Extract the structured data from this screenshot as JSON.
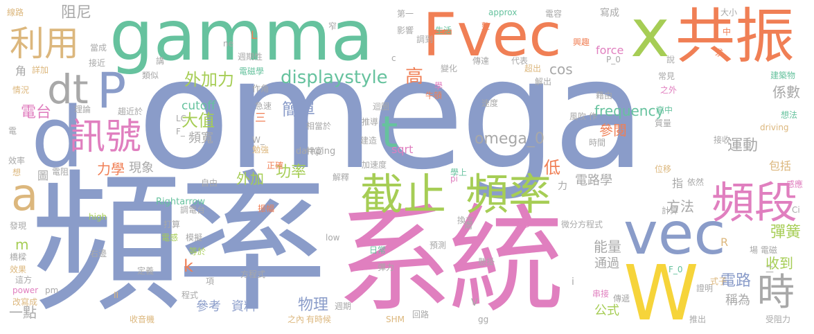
{
  "palette": {
    "blue": "#8a9cc9",
    "pink": "#e07fbf",
    "green": "#a6cd55",
    "teal": "#66c29e",
    "orange": "#f07f55",
    "yellow": "#f6d43a",
    "tan": "#dcb77d",
    "grey": "#a8a8a8"
  },
  "words": [
    {
      "text": "omega",
      "color": "blue"
    },
    {
      "text": "頻率",
      "color": "blue"
    },
    {
      "text": "系統",
      "color": "pink"
    },
    {
      "text": "gamma",
      "color": "teal"
    },
    {
      "text": "Fvec",
      "color": "orange"
    },
    {
      "text": "x",
      "color": "green"
    },
    {
      "text": "共振",
      "color": "orange"
    },
    {
      "text": "vec",
      "color": "blue"
    },
    {
      "text": "W",
      "color": "yellow"
    },
    {
      "text": "截止",
      "color": "green"
    },
    {
      "text": "頻率",
      "color": "green"
    },
    {
      "text": "頻段",
      "color": "pink"
    },
    {
      "text": "d",
      "color": "blue"
    },
    {
      "text": "dt",
      "color": "grey"
    },
    {
      "text": "P",
      "color": "blue"
    },
    {
      "text": "利用",
      "color": "tan"
    },
    {
      "text": "訊號",
      "color": "pink"
    },
    {
      "text": "t",
      "color": "teal"
    },
    {
      "text": "a",
      "color": "tan"
    },
    {
      "text": "時",
      "color": "grey"
    },
    {
      "text": "阻尼",
      "color": "grey"
    },
    {
      "text": "外加力",
      "color": "green"
    },
    {
      "text": "displaystyle",
      "color": "teal"
    },
    {
      "text": "高",
      "color": "orange"
    },
    {
      "text": "大值",
      "color": "green"
    },
    {
      "text": "cutoff",
      "color": "teal"
    },
    {
      "text": "頻寬",
      "color": "grey"
    },
    {
      "text": "簡單",
      "color": "blue"
    },
    {
      "text": "omega_0",
      "color": "grey"
    },
    {
      "text": "frequency",
      "color": "teal"
    },
    {
      "text": "參閱",
      "color": "orange"
    },
    {
      "text": "運動",
      "color": "grey"
    },
    {
      "text": "cos",
      "color": "grey"
    },
    {
      "text": "力學",
      "color": "orange"
    },
    {
      "text": "現象",
      "color": "grey"
    },
    {
      "text": "功率",
      "color": "green"
    },
    {
      "text": "外加",
      "color": "green"
    },
    {
      "text": "低",
      "color": "orange"
    },
    {
      "text": "電路學",
      "color": "grey"
    },
    {
      "text": "方法",
      "color": "grey"
    },
    {
      "text": "彈簧",
      "color": "green"
    },
    {
      "text": "收到",
      "color": "green"
    },
    {
      "text": "能量",
      "color": "grey"
    },
    {
      "text": "電路",
      "color": "blue"
    },
    {
      "text": "參考",
      "color": "blue"
    },
    {
      "text": "資料",
      "color": "blue"
    },
    {
      "text": "物理",
      "color": "blue"
    },
    {
      "text": "稱為",
      "color": "grey"
    },
    {
      "text": "k",
      "color": "orange"
    },
    {
      "text": "m",
      "color": "green"
    },
    {
      "text": "一點",
      "color": "grey"
    },
    {
      "text": "係數",
      "color": "grey"
    },
    {
      "text": "電台",
      "color": "pink"
    },
    {
      "text": "sqrt",
      "color": "pink"
    },
    {
      "text": "force",
      "color": "pink"
    },
    {
      "text": "通過",
      "color": "grey"
    },
    {
      "text": "公式",
      "color": "green"
    },
    {
      "text": "指",
      "color": "grey"
    },
    {
      "text": "包括",
      "color": "tan"
    },
    {
      "text": "三",
      "color": "orange"
    },
    {
      "text": "角",
      "color": "grey"
    },
    {
      "text": "圖",
      "color": "grey"
    },
    {
      "text": "damping",
      "color": "grey"
    },
    {
      "text": "Rightarrow",
      "color": "teal"
    },
    {
      "text": "approx",
      "color": "teal"
    },
    {
      "text": "power",
      "color": "pink"
    },
    {
      "text": "high",
      "color": "green"
    },
    {
      "text": "low",
      "color": "grey"
    },
    {
      "text": "pi",
      "color": "pink"
    },
    {
      "text": "SHM",
      "color": "tan"
    },
    {
      "text": "gg",
      "color": "grey"
    },
    {
      "text": "F_0",
      "color": "teal"
    },
    {
      "text": "P_0",
      "color": "grey"
    },
    {
      "text": "driving",
      "color": "tan"
    },
    {
      "text": "線路",
      "color": "tan"
    },
    {
      "text": "第一",
      "color": "grey"
    },
    {
      "text": "電容",
      "color": "grey"
    },
    {
      "text": "寫成",
      "color": "grey"
    },
    {
      "text": "大小",
      "color": "grey"
    },
    {
      "text": "生活",
      "color": "teal"
    },
    {
      "text": "興趣",
      "color": "orange"
    },
    {
      "text": "中",
      "color": "orange"
    },
    {
      "text": "求",
      "color": "orange"
    },
    {
      "text": "建築物",
      "color": "teal"
    },
    {
      "text": "傳達",
      "color": "grey"
    },
    {
      "text": "代表",
      "color": "grey"
    },
    {
      "text": "說",
      "color": "grey"
    },
    {
      "text": "常見",
      "color": "grey"
    },
    {
      "text": "之外",
      "color": "pink"
    },
    {
      "text": "高中",
      "color": "teal"
    },
    {
      "text": "想法",
      "color": "teal"
    },
    {
      "text": "質量",
      "color": "grey"
    },
    {
      "text": "接收",
      "color": "grey"
    },
    {
      "text": "感應",
      "color": "pink"
    },
    {
      "text": "依然",
      "color": "grey"
    },
    {
      "text": "位移",
      "color": "tan"
    },
    {
      "text": "計算",
      "color": "grey"
    },
    {
      "text": "電磁學",
      "color": "teal"
    },
    {
      "text": "作角",
      "color": "grey"
    },
    {
      "text": "解出",
      "color": "grey"
    },
    {
      "text": "超出",
      "color": "tan"
    },
    {
      "text": "牛頓",
      "color": "orange"
    },
    {
      "text": "速度",
      "color": "grey"
    },
    {
      "text": "風吹 作",
      "color": "grey"
    },
    {
      "text": "時間",
      "color": "grey"
    },
    {
      "text": "藉由",
      "color": "grey"
    },
    {
      "text": "學上",
      "color": "teal"
    },
    {
      "text": "換言",
      "color": "grey"
    },
    {
      "text": "微分方程式",
      "color": "grey"
    },
    {
      "text": "更多",
      "color": "pink"
    },
    {
      "text": "預測",
      "color": "grey"
    },
    {
      "text": "懸掛",
      "color": "grey"
    },
    {
      "text": "日常",
      "color": "teal"
    },
    {
      "text": "彈力",
      "color": "grey"
    },
    {
      "text": "兩",
      "color": "grey"
    },
    {
      "text": "串接",
      "color": "pink"
    },
    {
      "text": "傳遞",
      "color": "grey"
    },
    {
      "text": "證明",
      "color": "grey"
    },
    {
      "text": "推出",
      "color": "grey"
    },
    {
      "text": "受阻力",
      "color": "grey"
    },
    {
      "text": "式子",
      "color": "tan"
    },
    {
      "text": "回路",
      "color": "grey"
    },
    {
      "text": "有時候",
      "color": "tan"
    },
    {
      "text": "之內",
      "color": "tan"
    },
    {
      "text": "週期",
      "color": "grey"
    },
    {
      "text": "收音機",
      "color": "tan"
    },
    {
      "text": "程式",
      "color": "grey"
    },
    {
      "text": "方程式",
      "color": "grey"
    },
    {
      "text": "定義",
      "color": "grey"
    },
    {
      "text": "打算",
      "color": "grey"
    },
    {
      "text": "電感",
      "color": "green"
    },
    {
      "text": "模擬",
      "color": "grey"
    },
    {
      "text": "等於",
      "color": "green"
    },
    {
      "text": "項",
      "color": "grey"
    },
    {
      "text": "橋樑",
      "color": "grey"
    },
    {
      "text": "效果",
      "color": "tan"
    },
    {
      "text": "發現",
      "color": "grey"
    },
    {
      "text": "這方",
      "color": "grey"
    },
    {
      "text": "改寫成",
      "color": "tan"
    },
    {
      "text": "右邊",
      "color": "grey"
    },
    {
      "text": "振幅",
      "color": "orange"
    },
    {
      "text": "自由",
      "color": "grey"
    },
    {
      "text": "調電台",
      "color": "grey"
    },
    {
      "text": "正確",
      "color": "orange"
    },
    {
      "text": "解釋",
      "color": "grey"
    },
    {
      "text": "加速度",
      "color": "grey"
    },
    {
      "text": "特定",
      "color": "grey"
    },
    {
      "text": "建造",
      "color": "grey"
    },
    {
      "text": "勉強",
      "color": "tan"
    },
    {
      "text": "推導",
      "color": "grey"
    },
    {
      "text": "相當於",
      "color": "grey"
    },
    {
      "text": "急速",
      "color": "grey"
    },
    {
      "text": "趨近於",
      "color": "grey"
    },
    {
      "text": "理論",
      "color": "grey"
    },
    {
      "text": "電",
      "color": "grey"
    },
    {
      "text": "效率",
      "color": "grey"
    },
    {
      "text": "想",
      "color": "tan"
    },
    {
      "text": "電阻",
      "color": "grey"
    },
    {
      "text": "情況",
      "color": "tan"
    },
    {
      "text": "詳加",
      "color": "tan"
    },
    {
      "text": "類似",
      "color": "grey"
    },
    {
      "text": "接近",
      "color": "grey"
    },
    {
      "text": "當成",
      "color": "grey"
    },
    {
      "text": "講",
      "color": "grey"
    },
    {
      "text": "週期性",
      "color": "grey"
    },
    {
      "text": "影響",
      "color": "grey"
    },
    {
      "text": "調到",
      "color": "grey"
    },
    {
      "text": "窄",
      "color": "grey"
    },
    {
      "text": "整",
      "color": "orange"
    },
    {
      "text": "變化",
      "color": "grey"
    },
    {
      "text": "學",
      "color": "pink"
    },
    {
      "text": "迴圈",
      "color": "grey"
    },
    {
      "text": "ne",
      "color": "grey"
    },
    {
      "text": "L",
      "color": "orange"
    },
    {
      "text": "c",
      "color": "grey"
    },
    {
      "text": "LC",
      "color": "grey"
    },
    {
      "text": "F_",
      "color": "grey"
    },
    {
      "text": "W_",
      "color": "grey"
    },
    {
      "text": "R",
      "color": "tan"
    },
    {
      "text": "i",
      "color": "grey"
    },
    {
      "text": "V",
      "color": "grey"
    },
    {
      "text": "II",
      "color": "tan"
    },
    {
      "text": "pm",
      "color": "grey"
    },
    {
      "text": "Ci",
      "color": "grey"
    },
    {
      "text": "二",
      "color": "grey"
    },
    {
      "text": "力",
      "color": "grey"
    },
    {
      "text": "場 電磁",
      "color": "grey"
    }
  ]
}
